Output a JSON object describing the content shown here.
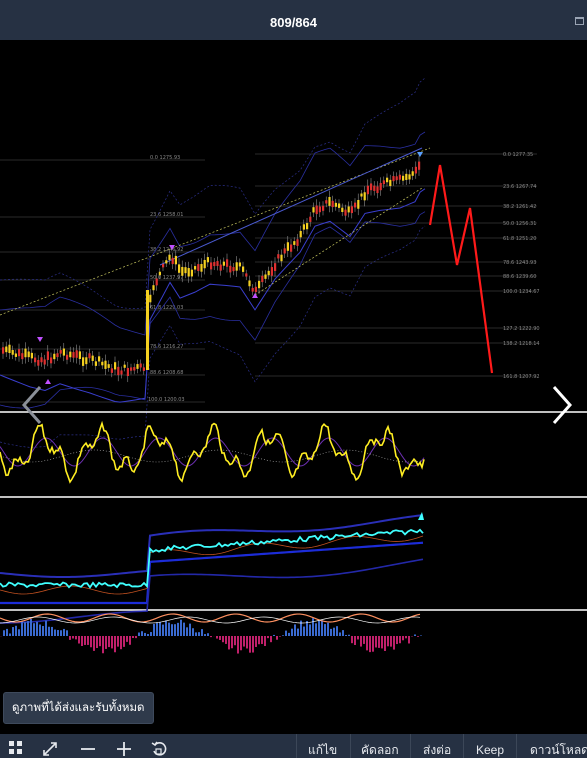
{
  "window": {
    "title": "809/864",
    "controls": [
      "maximize-icon"
    ]
  },
  "chart_data": {
    "type": "line",
    "subtype": "candlestick-with-indicators",
    "panes": [
      "price",
      "oscillator",
      "oscillator",
      "histogram"
    ],
    "fib_levels_left": [
      {
        "label": "0.0 1275.93"
      },
      {
        "label": "23.6 1258.01"
      },
      {
        "label": "38.2 1246.92"
      },
      {
        "label": "50.0 1237.97"
      },
      {
        "label": "61.8 1229.03"
      },
      {
        "label": "78.6 1216.27"
      },
      {
        "label": "88.6 1208.68"
      },
      {
        "label": "100.0 1200.03"
      }
    ],
    "fib_levels_right": [
      {
        "label": "0.0 1277.35"
      },
      {
        "label": "23.6 1267.74"
      },
      {
        "label": "38.2 1261.42"
      },
      {
        "label": "50.0 1256.31"
      },
      {
        "label": "61.8 1251.20"
      },
      {
        "label": "78.6 1243.93"
      },
      {
        "label": "88.6 1239.60"
      },
      {
        "label": "100.0 1234.67"
      },
      {
        "label": "127.2 1222.90"
      },
      {
        "label": "138.2 1218.14"
      },
      {
        "label": "161.8 1207.92"
      }
    ],
    "colors": {
      "bull": "#f5d020",
      "bear": "#e03030",
      "projection": "#ff1a1a",
      "oscillator": "#ffee22",
      "cyan_line": "#40ffff",
      "band": "#1c2cd8",
      "divider": "#ffffff"
    }
  },
  "nav": {
    "prev_icon": "chevron-left-icon",
    "next_icon": "chevron-right-icon"
  },
  "tooltip": {
    "text": "ดูภาพที่ได้ส่งและรับทั้งหมด"
  },
  "toolbar": {
    "icons": [
      "grid-icon",
      "expand-icon",
      "zoom-out-icon",
      "zoom-in-icon",
      "rotate-icon"
    ],
    "edit_label": "แก้ไข",
    "copy_label": "คัดลอก",
    "forward_label": "ส่งต่อ",
    "keep_label": "Keep",
    "download_label": "ดาวน์โหลด"
  }
}
